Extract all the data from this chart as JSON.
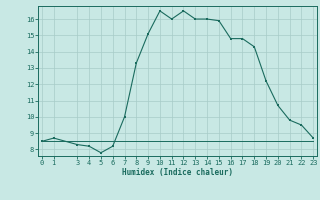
{
  "x_curve": [
    0,
    1,
    3,
    4,
    5,
    6,
    7,
    8,
    9,
    10,
    11,
    12,
    13,
    14,
    15,
    16,
    17,
    18,
    19,
    20,
    21,
    22,
    23
  ],
  "y_curve": [
    8.5,
    8.7,
    8.3,
    8.2,
    7.8,
    8.2,
    10.0,
    13.3,
    15.1,
    16.5,
    16.0,
    16.5,
    16.0,
    16.0,
    15.9,
    14.8,
    14.8,
    14.3,
    12.2,
    10.7,
    9.8,
    9.5,
    8.7
  ],
  "x_flat": [
    0,
    1,
    3,
    4,
    5,
    6,
    7,
    8,
    9,
    10,
    11,
    12,
    13,
    14,
    15,
    16,
    17,
    18,
    19,
    20,
    21,
    22,
    23
  ],
  "y_flat": [
    8.5,
    8.5,
    8.5,
    8.5,
    8.5,
    8.5,
    8.5,
    8.5,
    8.5,
    8.5,
    8.5,
    8.5,
    8.5,
    8.5,
    8.5,
    8.5,
    8.5,
    8.5,
    8.5,
    8.5,
    8.5,
    8.5,
    8.5
  ],
  "line_color": "#1a6b5e",
  "bg_color": "#c8e8e4",
  "grid_color": "#a8ccc8",
  "xlabel": "Humidex (Indice chaleur)",
  "ylim": [
    7.6,
    16.8
  ],
  "xlim": [
    -0.3,
    23.3
  ],
  "yticks": [
    8,
    9,
    10,
    11,
    12,
    13,
    14,
    15,
    16
  ],
  "xticks": [
    0,
    1,
    3,
    4,
    5,
    6,
    7,
    8,
    9,
    10,
    11,
    12,
    13,
    14,
    15,
    16,
    17,
    18,
    19,
    20,
    21,
    22,
    23
  ],
  "xlabel_fontsize": 5.5,
  "tick_fontsize": 5.0
}
